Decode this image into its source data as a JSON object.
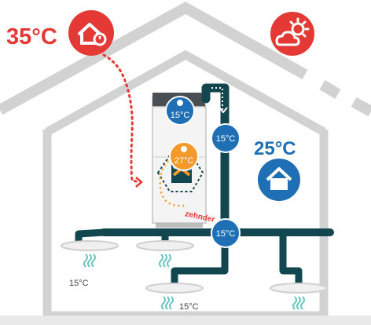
{
  "outdoor": {
    "temperature": "35°C",
    "icon": "house-heat-icon",
    "weather_icon": "sun-cloud-icon"
  },
  "indoor": {
    "temperature": "25°C",
    "icon": "house-icon"
  },
  "unit": {
    "brand": "zehnder",
    "exhaust_badge": "15°C",
    "bypass_badge": "27°C"
  },
  "duct": {
    "riser_badge": "15°C",
    "junction_badge": "15°C"
  },
  "vents": [
    {
      "id": "vent-1",
      "temperature": "15°C"
    },
    {
      "id": "vent-2",
      "temperature": ""
    },
    {
      "id": "vent-3",
      "temperature": "15°C"
    },
    {
      "id": "vent-4",
      "temperature": ""
    }
  ],
  "colors": {
    "red": "#e53935",
    "blue": "#1f6fb5",
    "orange": "#f39a2b",
    "duct": "#12474f",
    "house_outline": "#cfcfcf",
    "unit_body": "#f2f2f2",
    "unit_top": "#4a4f56",
    "vent_wave": "#6ec6c2"
  }
}
